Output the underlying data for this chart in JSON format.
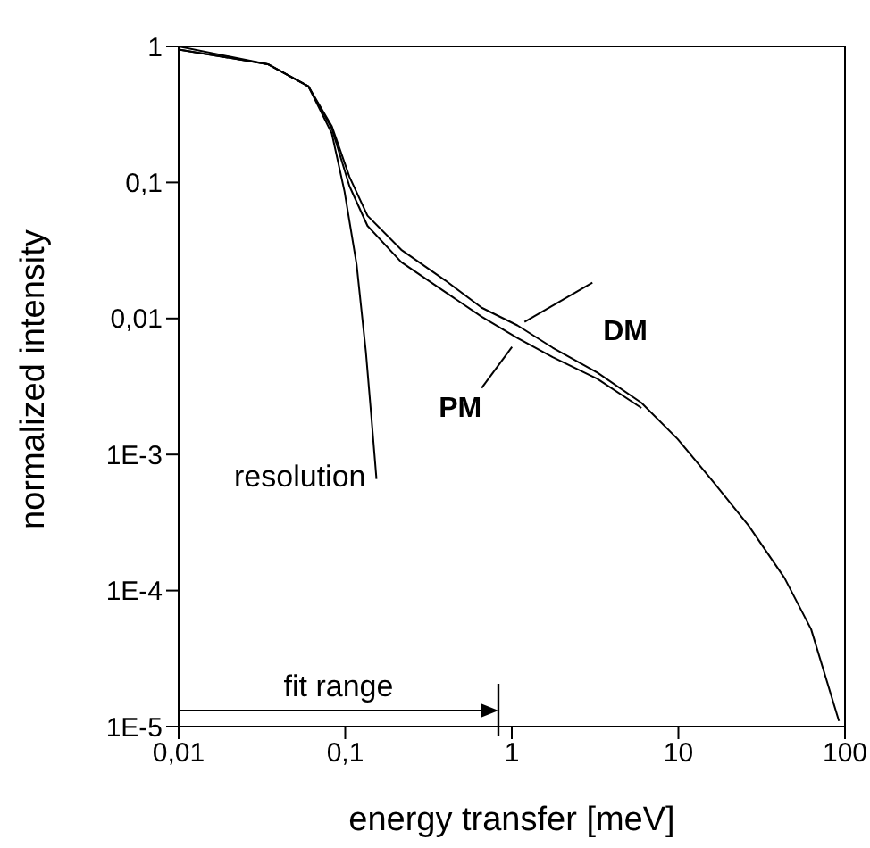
{
  "chart_data": {
    "type": "line",
    "xlabel": "energy transfer [meV]",
    "ylabel": "normalized intensity",
    "log": "xy",
    "xlim": [
      0.01,
      100
    ],
    "ylim": [
      1e-05,
      1
    ],
    "xticks": [
      {
        "value": 0.01,
        "label": "0,01"
      },
      {
        "value": 0.1,
        "label": "0,1"
      },
      1,
      10,
      100
    ],
    "yticks": [
      {
        "value": 1e-05,
        "label": "1E-5"
      },
      {
        "value": 0.0001,
        "label": "1E-4"
      },
      {
        "value": 0.001,
        "label": "1E-3"
      },
      {
        "value": 0.01,
        "label": "0,01"
      },
      {
        "value": 0.1,
        "label": "0,1"
      },
      1
    ],
    "marker": "none",
    "line_style": "solid",
    "series": [
      {
        "name": "resolution",
        "color": "#000000",
        "x": [
          0.01,
          0.0343,
          0.06,
          0.083,
          0.099,
          0.117,
          0.133,
          0.143,
          0.154
        ],
        "values": [
          0.95,
          0.74,
          0.51,
          0.23,
          0.086,
          0.025,
          0.0057,
          0.002,
          0.00066
        ]
      },
      {
        "name": "DM",
        "color": "#000000",
        "x": [
          0.01,
          0.0343,
          0.06,
          0.083,
          0.106,
          0.136,
          0.217,
          0.4,
          0.66,
          1.08,
          1.76,
          3.26,
          6.0,
          9.9,
          16.2,
          26.4,
          43.3,
          62.6,
          92
        ],
        "values": [
          1.0,
          0.74,
          0.51,
          0.26,
          0.11,
          0.057,
          0.032,
          0.019,
          0.012,
          0.0089,
          0.0061,
          0.004,
          0.0024,
          0.0013,
          0.00063,
          0.0003,
          0.000124,
          5.2e-05,
          1.1e-05
        ]
      },
      {
        "name": "PM",
        "color": "#000000",
        "x": [
          0.01,
          0.0343,
          0.06,
          0.083,
          0.106,
          0.136,
          0.217,
          0.4,
          0.66,
          1.08,
          1.76,
          3.26,
          6.0
        ],
        "values": [
          0.95,
          0.74,
          0.51,
          0.25,
          0.094,
          0.048,
          0.026,
          0.0156,
          0.0103,
          0.0072,
          0.0052,
          0.0036,
          0.0022
        ]
      }
    ],
    "annotations": [
      "fit range"
    ]
  }
}
